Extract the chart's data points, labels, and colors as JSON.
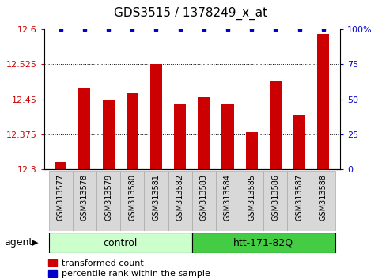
{
  "title": "GDS3515 / 1378249_x_at",
  "samples": [
    "GSM313577",
    "GSM313578",
    "GSM313579",
    "GSM313580",
    "GSM313581",
    "GSM313582",
    "GSM313583",
    "GSM313584",
    "GSM313585",
    "GSM313586",
    "GSM313587",
    "GSM313588"
  ],
  "bar_values": [
    12.315,
    12.475,
    12.45,
    12.465,
    12.525,
    12.44,
    12.455,
    12.44,
    12.38,
    12.49,
    12.415,
    12.59
  ],
  "percentile_values": [
    100,
    100,
    100,
    100,
    100,
    100,
    100,
    100,
    100,
    100,
    100,
    100
  ],
  "bar_color": "#cc0000",
  "percentile_color": "#0000cc",
  "ylim_left": [
    12.3,
    12.6
  ],
  "ylim_right": [
    0,
    100
  ],
  "yticks_left": [
    12.3,
    12.375,
    12.45,
    12.525,
    12.6
  ],
  "yticks_right": [
    0,
    25,
    50,
    75,
    100
  ],
  "control_samples": 6,
  "group1_label": "control",
  "group2_label": "htt-171-82Q",
  "group1_color": "#ccffcc",
  "group2_color": "#44cc44",
  "agent_label": "agent",
  "arrow_char": "▶",
  "legend_bar_label": "transformed count",
  "legend_pct_label": "percentile rank within the sample",
  "bar_width": 0.5,
  "bg_color": "#ffffff",
  "tick_label_color_left": "#cc0000",
  "tick_label_color_right": "#0000cc",
  "gridline_values": [
    12.375,
    12.45,
    12.525
  ],
  "sample_box_color": "#d8d8d8",
  "ytick_right_labels": [
    "0",
    "25",
    "50",
    "75",
    "100%"
  ]
}
